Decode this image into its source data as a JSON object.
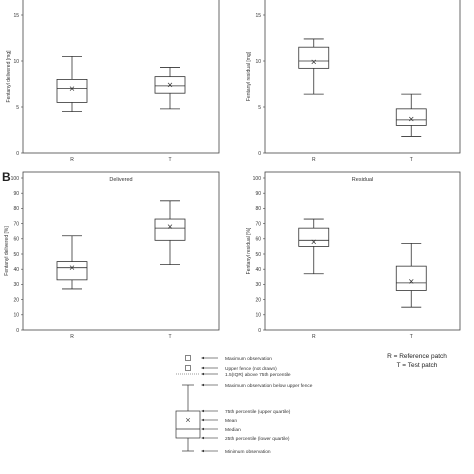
{
  "figure": {
    "panel_b_letter": "B",
    "notes": [
      "R = Reference patch",
      "T = Test patch"
    ]
  },
  "chart_data": [
    {
      "type": "box",
      "title": "",
      "xlabel": "",
      "ylabel": "Fentanyl delivered [mg]",
      "categories": [
        "R",
        "T"
      ],
      "ylim": [
        0,
        17.5
      ],
      "yticks": [
        0,
        5,
        10,
        15
      ],
      "grid": false,
      "boxes": [
        {
          "category": "R",
          "min": 4.5,
          "q1": 5.5,
          "median": 7.0,
          "q3": 8.0,
          "max": 10.5,
          "mean": 7.0
        },
        {
          "category": "T",
          "min": 4.8,
          "q1": 6.5,
          "median": 7.3,
          "q3": 8.3,
          "max": 9.3,
          "mean": 7.4
        }
      ]
    },
    {
      "type": "box",
      "title": "",
      "xlabel": "",
      "ylabel": "Fentanyl residual [mg]",
      "categories": [
        "R",
        "T"
      ],
      "ylim": [
        0,
        17.5
      ],
      "yticks": [
        0,
        5,
        10,
        15
      ],
      "grid": false,
      "boxes": [
        {
          "category": "R",
          "min": 6.4,
          "q1": 9.2,
          "median": 10.0,
          "q3": 11.5,
          "max": 12.4,
          "mean": 9.9
        },
        {
          "category": "T",
          "min": 1.8,
          "q1": 3.0,
          "median": 3.6,
          "q3": 4.8,
          "max": 6.4,
          "mean": 3.7
        }
      ]
    },
    {
      "type": "box",
      "title": "Delivered",
      "xlabel": "",
      "ylabel": "Fentanyl delivered [%]",
      "categories": [
        "R",
        "T"
      ],
      "ylim": [
        0,
        100
      ],
      "yticks": [
        0,
        10,
        20,
        30,
        40,
        50,
        60,
        70,
        80,
        90,
        100
      ],
      "grid": false,
      "boxes": [
        {
          "category": "R",
          "min": 27,
          "q1": 33,
          "median": 41,
          "q3": 45,
          "max": 62,
          "mean": 41
        },
        {
          "category": "T",
          "min": 43,
          "q1": 59,
          "median": 67,
          "q3": 73,
          "max": 85,
          "mean": 68
        }
      ]
    },
    {
      "type": "box",
      "title": "Residual",
      "xlabel": "",
      "ylabel": "Fentanyl residual [%]",
      "categories": [
        "R",
        "T"
      ],
      "ylim": [
        0,
        100
      ],
      "yticks": [
        0,
        10,
        20,
        30,
        40,
        50,
        60,
        70,
        80,
        90,
        100
      ],
      "grid": false,
      "boxes": [
        {
          "category": "R",
          "min": 37,
          "q1": 55,
          "median": 59,
          "q3": 67,
          "max": 73,
          "mean": 58
        },
        {
          "category": "T",
          "min": 15,
          "q1": 26,
          "median": 31,
          "q3": 42,
          "max": 57,
          "mean": 32
        }
      ]
    }
  ],
  "legend": {
    "labels": [
      "Maximum observation",
      "Upper fence (not drawn)",
      "1.5(IQR) above 75th percentile",
      "Maximum observation below upper fence",
      "75th percentile (upper quartile)",
      "Mean",
      "Median",
      "25th percentile (lower quartile)",
      "Minimum observation"
    ]
  }
}
